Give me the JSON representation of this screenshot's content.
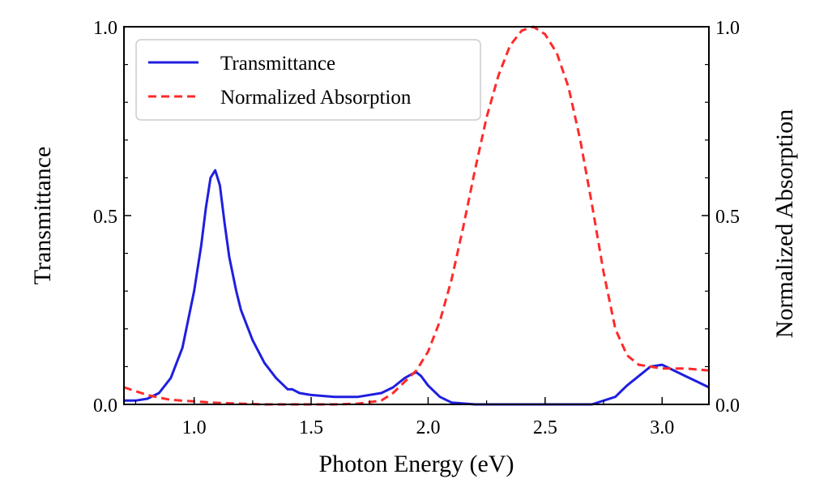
{
  "chart_data": {
    "type": "line",
    "xlabel": "Photon Energy (eV)",
    "ylabel_left": "Transmittance",
    "ylabel_right": "Normalized Absorption",
    "xlim": [
      0.7,
      3.2
    ],
    "ylim_left": [
      0.0,
      1.0
    ],
    "ylim_right": [
      0.0,
      1.0
    ],
    "x_ticks": [
      "1.0",
      "1.5",
      "2.0",
      "2.5",
      "3.0"
    ],
    "y_ticks_left": [
      "0.0",
      "0.5",
      "1.0"
    ],
    "y_ticks_right": [
      "0.0",
      "0.5",
      "1.0"
    ],
    "grid": false,
    "legend_position": "top-left",
    "series": [
      {
        "name": "Transmittance",
        "axis": "left",
        "color": "#1f1fe0",
        "style": "solid",
        "x": [
          0.7,
          0.75,
          0.8,
          0.85,
          0.9,
          0.95,
          1.0,
          1.03,
          1.05,
          1.07,
          1.09,
          1.11,
          1.13,
          1.15,
          1.18,
          1.2,
          1.25,
          1.3,
          1.35,
          1.4,
          1.42,
          1.45,
          1.5,
          1.6,
          1.7,
          1.8,
          1.85,
          1.9,
          1.93,
          1.95,
          1.97,
          2.0,
          2.05,
          2.1,
          2.2,
          2.3,
          2.4,
          2.5,
          2.6,
          2.7,
          2.8,
          2.85,
          2.9,
          2.95,
          3.0,
          3.05,
          3.1,
          3.15,
          3.2
        ],
        "y": [
          0.01,
          0.01,
          0.015,
          0.03,
          0.07,
          0.15,
          0.3,
          0.42,
          0.52,
          0.6,
          0.62,
          0.58,
          0.48,
          0.39,
          0.3,
          0.25,
          0.17,
          0.11,
          0.07,
          0.04,
          0.04,
          0.03,
          0.025,
          0.02,
          0.02,
          0.03,
          0.045,
          0.07,
          0.08,
          0.085,
          0.075,
          0.05,
          0.02,
          0.005,
          0.0,
          0.0,
          0.0,
          0.0,
          0.0,
          0.0,
          0.02,
          0.05,
          0.075,
          0.1,
          0.105,
          0.09,
          0.075,
          0.06,
          0.045
        ]
      },
      {
        "name": "Normalized Absorption",
        "axis": "right",
        "color": "#ff2a2a",
        "style": "dashed",
        "x": [
          0.7,
          0.75,
          0.8,
          0.85,
          0.9,
          1.0,
          1.1,
          1.2,
          1.3,
          1.4,
          1.5,
          1.6,
          1.7,
          1.8,
          1.85,
          1.9,
          1.95,
          2.0,
          2.05,
          2.1,
          2.15,
          2.2,
          2.25,
          2.3,
          2.35,
          2.4,
          2.45,
          2.5,
          2.55,
          2.6,
          2.65,
          2.7,
          2.75,
          2.8,
          2.85,
          2.9,
          3.0,
          3.1,
          3.2
        ],
        "y": [
          0.045,
          0.035,
          0.025,
          0.018,
          0.012,
          0.008,
          0.004,
          0.002,
          0.0,
          0.0,
          0.0,
          0.0,
          0.002,
          0.01,
          0.03,
          0.06,
          0.09,
          0.14,
          0.22,
          0.33,
          0.47,
          0.62,
          0.76,
          0.87,
          0.95,
          0.99,
          1.0,
          0.98,
          0.93,
          0.84,
          0.7,
          0.53,
          0.35,
          0.2,
          0.13,
          0.105,
          0.095,
          0.095,
          0.09
        ]
      }
    ]
  }
}
